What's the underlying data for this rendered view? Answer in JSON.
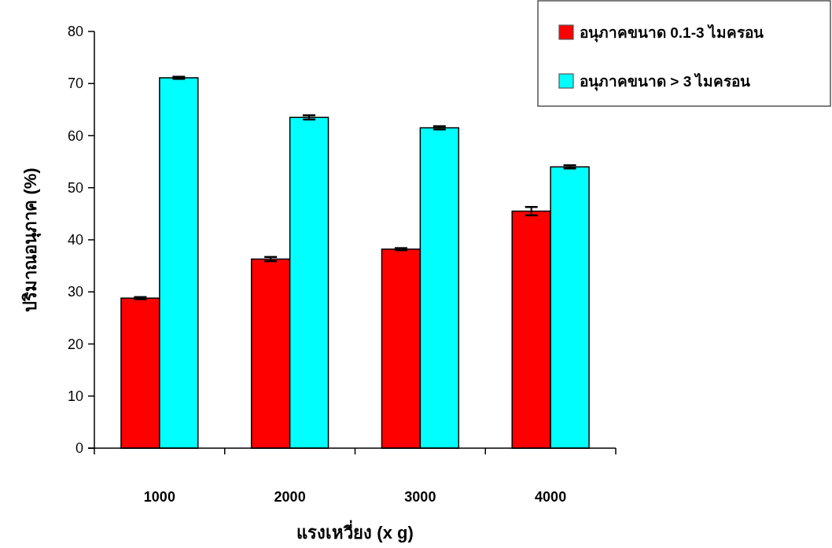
{
  "chart_data": {
    "type": "bar",
    "xlabel": "แรงเหวี่ยง (x g)",
    "ylabel": "ปริมาณอนุภาค (%)",
    "categories": [
      "1000",
      "2000",
      "3000",
      "4000"
    ],
    "series": [
      {
        "name": "อนุภาคขนาด 0.1-3 ไมครอน",
        "color": "#ff0000",
        "values": [
          28.8,
          36.3,
          38.2,
          45.5
        ],
        "errors": [
          0.2,
          0.4,
          0.2,
          0.8
        ]
      },
      {
        "name": "อนุภาคขนาด > 3 ไมครอน",
        "color": "#00ffff",
        "values": [
          71.1,
          63.5,
          61.5,
          54.0
        ],
        "errors": [
          0.2,
          0.4,
          0.3,
          0.3
        ]
      }
    ],
    "ylim": [
      0,
      80
    ],
    "yticks": [
      0,
      10,
      20,
      30,
      40,
      50,
      60,
      70,
      80
    ],
    "grid": false,
    "legend": "top right"
  }
}
